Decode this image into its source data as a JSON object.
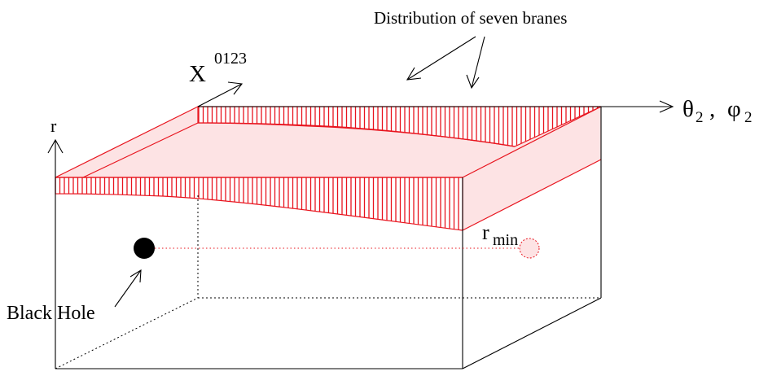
{
  "title": "Distribution of seven branes",
  "labels": {
    "x_axis_main": "X",
    "x_axis_sup": "0123",
    "r_axis": "r",
    "theta_symbol": "θ",
    "theta_sub": "2",
    "comma": ",",
    "phi_symbol": "φ",
    "phi_sub": "2",
    "rmin_main": "r",
    "rmin_sub": "min",
    "black_hole": "Black Hole"
  },
  "colors": {
    "brane_line": "#e8141e",
    "brane_fill": "#fde3e4",
    "box_line": "#000000",
    "black_hole": "#000000"
  }
}
